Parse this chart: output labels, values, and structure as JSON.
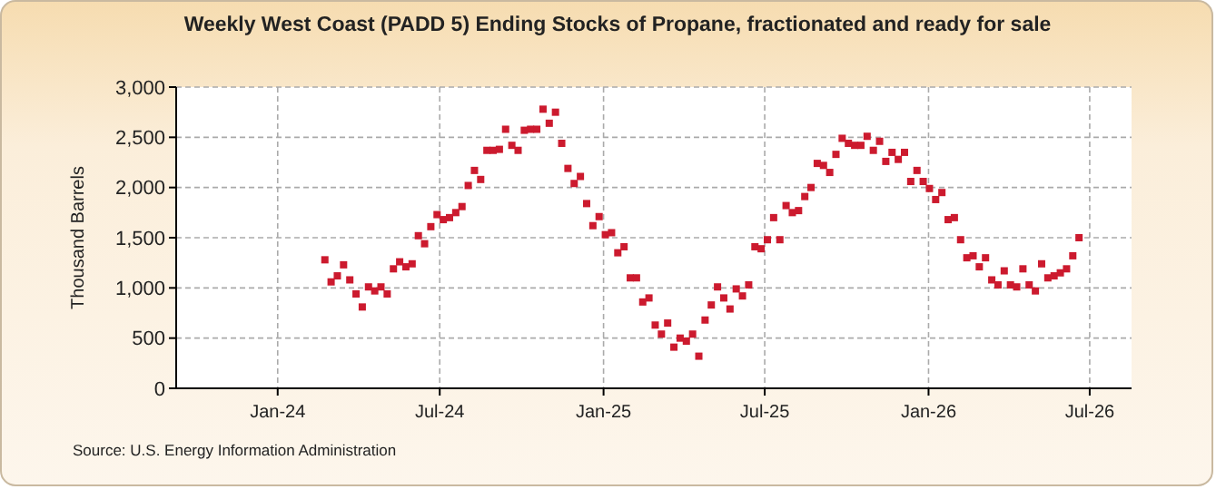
{
  "chart_data": {
    "type": "scatter",
    "title": "Weekly West Coast (PADD 5) Ending Stocks of Propane, fractionated and ready for sale",
    "ylabel": "Thousand Barrels",
    "annotations": [
      "Source: U.S. Energy Information Administration"
    ],
    "x": [
      "2024-02-23",
      "2024-03-01",
      "2024-03-08",
      "2024-03-15",
      "2024-03-22",
      "2024-03-29",
      "2024-04-05",
      "2024-04-12",
      "2024-04-19",
      "2024-04-26",
      "2024-05-03",
      "2024-05-10",
      "2024-05-17",
      "2024-05-24",
      "2024-05-31",
      "2024-06-07",
      "2024-06-14",
      "2024-06-21",
      "2024-06-28",
      "2024-07-05",
      "2024-07-12",
      "2024-07-19",
      "2024-07-26",
      "2024-08-02",
      "2024-08-09",
      "2024-08-16",
      "2024-08-23",
      "2024-08-30",
      "2024-09-06",
      "2024-09-13",
      "2024-09-20",
      "2024-09-27",
      "2024-10-04",
      "2024-10-11",
      "2024-10-18",
      "2024-10-25",
      "2024-11-01",
      "2024-11-08",
      "2024-11-15",
      "2024-11-22",
      "2024-11-29",
      "2024-12-06",
      "2024-12-13",
      "2024-12-20",
      "2024-12-27",
      "2025-01-03",
      "2025-01-10",
      "2025-01-17",
      "2025-01-24",
      "2025-01-31",
      "2025-02-07",
      "2025-02-14",
      "2025-02-21",
      "2025-02-28",
      "2025-03-07",
      "2025-03-14",
      "2025-03-21",
      "2025-03-28",
      "2025-04-04",
      "2025-04-11",
      "2025-04-18",
      "2025-04-25",
      "2025-05-02",
      "2025-05-09",
      "2025-05-16",
      "2025-05-23",
      "2025-05-30",
      "2025-06-06",
      "2025-06-13",
      "2025-06-20",
      "2025-06-27",
      "2025-07-04",
      "2025-07-11",
      "2025-07-18",
      "2025-07-25",
      "2025-08-01",
      "2025-08-08",
      "2025-08-15",
      "2025-08-22",
      "2025-08-29",
      "2025-09-05",
      "2025-09-12",
      "2025-09-19",
      "2025-09-26",
      "2025-10-03",
      "2025-10-10",
      "2025-10-17",
      "2025-10-24",
      "2025-10-31",
      "2025-11-07",
      "2025-11-14",
      "2025-11-21",
      "2025-11-28",
      "2025-12-05",
      "2025-12-12",
      "2025-12-19",
      "2025-12-26",
      "2026-01-02",
      "2026-01-09",
      "2026-01-16",
      "2026-01-23",
      "2026-01-30",
      "2026-02-06",
      "2026-02-13",
      "2026-02-20",
      "2026-02-27",
      "2026-03-06",
      "2026-03-13",
      "2026-03-20",
      "2026-03-27",
      "2026-04-03",
      "2026-04-10",
      "2026-04-17",
      "2026-04-24",
      "2026-05-01",
      "2026-05-08",
      "2026-05-15",
      "2026-05-22",
      "2026-05-29",
      "2026-06-05",
      "2026-06-12",
      "2026-06-19"
    ],
    "series": [
      {
        "color": "#cc1a2e",
        "values": [
          1280,
          1060,
          1120,
          1230,
          1080,
          940,
          810,
          1010,
          970,
          1010,
          940,
          1190,
          1260,
          1210,
          1240,
          1520,
          1440,
          1610,
          1730,
          1680,
          1700,
          1750,
          1810,
          2020,
          2170,
          2080,
          2370,
          2370,
          2380,
          2580,
          2420,
          2370,
          2570,
          2580,
          2580,
          2780,
          2640,
          2750,
          2440,
          2190,
          2040,
          2110,
          1840,
          1620,
          1710,
          1530,
          1550,
          1350,
          1410,
          1100,
          1100,
          860,
          900,
          630,
          540,
          650,
          410,
          500,
          470,
          540,
          320,
          680,
          830,
          1010,
          900,
          790,
          990,
          920,
          1030,
          1410,
          1390,
          1480,
          1700,
          1480,
          1820,
          1750,
          1770,
          1910,
          2000,
          2240,
          2220,
          2150,
          2330,
          2490,
          2440,
          2420,
          2420,
          2510,
          2370,
          2460,
          2260,
          2350,
          2280,
          2350,
          2060,
          2170,
          2060,
          1990,
          1880,
          1950,
          1680,
          1700,
          1480,
          1300,
          1320,
          1210,
          1300,
          1080,
          1030,
          1170,
          1030,
          1010,
          1190,
          1030,
          970,
          1240,
          1100,
          1120,
          1150,
          1190,
          1320,
          1500
        ]
      }
    ],
    "xlim": [
      "2023-09-09",
      "2026-08-17"
    ],
    "xticks": [
      {
        "value": "2024-01-01",
        "label": "Jan-24"
      },
      {
        "value": "2024-07-01",
        "label": "Jul-24"
      },
      {
        "value": "2025-01-01",
        "label": "Jan-25"
      },
      {
        "value": "2025-07-01",
        "label": "Jul-25"
      },
      {
        "value": "2026-01-01",
        "label": "Jan-26"
      },
      {
        "value": "2026-07-01",
        "label": "Jul-26"
      }
    ],
    "ylim": [
      0,
      3000
    ],
    "yticks": [
      {
        "value": 0,
        "label": "0"
      },
      {
        "value": 500,
        "label": "500"
      },
      {
        "value": 1000,
        "label": "1,000"
      },
      {
        "value": 1500,
        "label": "1,500"
      },
      {
        "value": 2000,
        "label": "2,000"
      },
      {
        "value": 2500,
        "label": "2,500"
      },
      {
        "value": 3000,
        "label": "3,000"
      }
    ],
    "grid": true,
    "marker": "square"
  }
}
